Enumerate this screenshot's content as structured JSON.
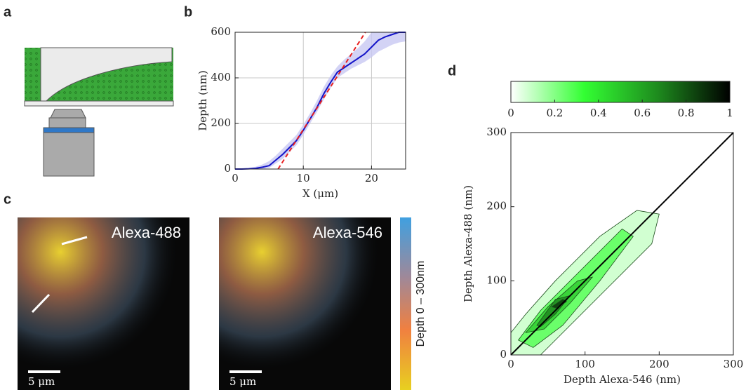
{
  "panel_labels": [
    "a",
    "b",
    "c",
    "d"
  ],
  "images": [
    {
      "label": "Alexa-488",
      "scale_bar": "5 μm"
    },
    {
      "label": "Alexa-546",
      "scale_bar": "5 μm"
    }
  ],
  "depth_colorbar": {
    "label": "Depth 0 – 300nm"
  },
  "chart_data": [
    {
      "type": "line",
      "x_label": "X (μm)",
      "y_label": "Depth (nm)",
      "xlim": [
        0,
        25
      ],
      "xticks": [
        0,
        10,
        20
      ],
      "ylim": [
        0,
        600
      ],
      "yticks": [
        0,
        200,
        400,
        600
      ],
      "grid": true,
      "x": [
        0,
        1,
        2,
        3,
        4,
        5,
        6,
        7,
        8,
        9,
        10,
        11,
        12,
        13,
        14,
        15,
        16,
        17,
        18,
        19,
        20,
        21,
        22,
        23,
        24,
        25
      ],
      "series": [
        {
          "color": "#1414c8",
          "values": [
            0,
            0,
            1,
            3,
            8,
            15,
            40,
            65,
            95,
            125,
            170,
            220,
            270,
            330,
            380,
            425,
            445,
            465,
            485,
            505,
            535,
            565,
            580,
            590,
            600,
            600
          ]
        },
        {
          "color": "#e82020",
          "dash": true,
          "x": [
            6.3,
            19.1
          ],
          "values": [
            0,
            600
          ]
        }
      ],
      "band": {
        "color": "#c8c8f2",
        "upper": [
          0,
          2,
          5,
          10,
          20,
          35,
          60,
          90,
          120,
          150,
          195,
          245,
          300,
          360,
          410,
          450,
          480,
          505,
          530,
          560,
          600,
          600,
          600,
          600,
          600,
          600
        ],
        "lower": [
          0,
          0,
          0,
          0,
          0,
          5,
          25,
          45,
          75,
          105,
          150,
          200,
          250,
          305,
          355,
          400,
          420,
          440,
          455,
          470,
          490,
          515,
          530,
          545,
          555,
          560
        ]
      }
    },
    {
      "type": "contour",
      "x_label": "Depth Alexa-546 (nm)",
      "y_label": "Depth Alexa-488 (nm)",
      "xlim": [
        0,
        300
      ],
      "ylim": [
        0,
        300
      ],
      "xticks": [
        0,
        100,
        200,
        300
      ],
      "yticks": [
        0,
        100,
        200,
        300
      ],
      "colorbar": {
        "colors": [
          "#ffffff",
          "#33ff33",
          "#1e8c1e",
          "#000000"
        ],
        "lim": [
          0,
          1
        ],
        "ticks": [
          0,
          0.2,
          0.4,
          0.6,
          0.8,
          1
        ]
      },
      "contours": [
        {
          "level": 0.1,
          "x": [
            0,
            0,
            20,
            60,
            120,
            170,
            200,
            190,
            130,
            80,
            40
          ],
          "y": [
            0,
            30,
            55,
            100,
            160,
            195,
            190,
            150,
            90,
            40,
            0
          ]
        },
        {
          "level": 0.3,
          "x": [
            10,
            40,
            90,
            150,
            165,
            120,
            70,
            30
          ],
          "y": [
            20,
            60,
            110,
            170,
            160,
            100,
            40,
            10
          ]
        },
        {
          "level": 0.5,
          "x": [
            20,
            50,
            90,
            110,
            80,
            45
          ],
          "y": [
            30,
            65,
            100,
            105,
            70,
            35
          ]
        },
        {
          "level": 0.7,
          "x": [
            35,
            60,
            80,
            60,
            40
          ],
          "y": [
            40,
            75,
            80,
            55,
            38
          ]
        },
        {
          "level": 0.9,
          "x": [
            55,
            70,
            75,
            62
          ],
          "y": [
            65,
            75,
            72,
            63
          ]
        }
      ],
      "series": [
        {
          "color": "#000000",
          "x": [
            0,
            300
          ],
          "values": [
            0,
            300
          ]
        }
      ]
    }
  ]
}
